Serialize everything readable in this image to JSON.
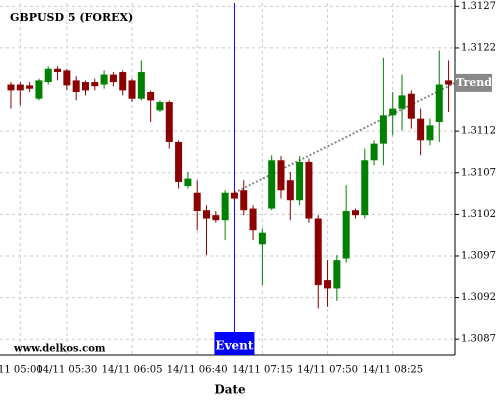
{
  "chart_data": {
    "type": "candlestick",
    "title": "GBPUSD 5 (FOREX)",
    "x_label": "Date",
    "watermark": "www.delkos.com",
    "categories": [
      null,
      "11 05:00",
      null,
      null,
      null,
      null,
      "14/11 05:30",
      null,
      null,
      null,
      null,
      null,
      null,
      "14/11 06:05",
      null,
      null,
      null,
      null,
      null,
      null,
      "14/11 06:40",
      null,
      null,
      null,
      null,
      null,
      null,
      "14/11 07:15",
      null,
      null,
      null,
      null,
      null,
      null,
      "14/11 07:50",
      null,
      null,
      null,
      null,
      null,
      null,
      "14/11 08:25",
      null,
      null,
      null,
      null,
      null,
      null
    ],
    "open": [
      1.31176,
      1.31176,
      1.31175,
      1.31159,
      1.31179,
      1.31195,
      1.31193,
      1.31181,
      1.31179,
      1.31179,
      1.31176,
      1.31188,
      1.31191,
      1.31181,
      1.31159,
      1.31167,
      1.31145,
      1.31155,
      1.31107,
      1.31054,
      1.31046,
      1.31025,
      1.31019,
      1.31013,
      1.31046,
      1.31049,
      1.31027,
      1.30984,
      1.31027,
      1.31085,
      1.31061,
      1.31037,
      1.31083,
      1.31015,
      1.30941,
      1.30931,
      1.30967,
      1.31025,
      1.31019,
      1.31085,
      1.31105,
      1.31139,
      1.31147,
      1.31165,
      1.31135,
      1.31109,
      1.31131,
      1.31181
    ],
    "high": [
      1.31179,
      1.31179,
      1.31179,
      1.31183,
      1.31198,
      1.31198,
      1.31195,
      1.31186,
      1.31181,
      1.31183,
      1.31193,
      1.31191,
      1.31193,
      1.31183,
      1.31205,
      1.31169,
      1.31157,
      1.31157,
      1.31109,
      1.31071,
      1.31061,
      1.31031,
      1.31024,
      1.31049,
      1.31049,
      1.31061,
      1.31031,
      1.31003,
      1.31091,
      1.3109,
      1.31071,
      1.3109,
      1.31087,
      1.31019,
      1.30965,
      1.30971,
      1.31055,
      1.31027,
      1.31099,
      1.31109,
      1.31208,
      1.31167,
      1.31188,
      1.31169,
      1.31147,
      1.31135,
      1.31217,
      1.31205
    ],
    "low": [
      1.31147,
      1.31151,
      1.31167,
      1.31157,
      1.31176,
      1.31181,
      1.31169,
      1.31157,
      1.31163,
      1.31169,
      1.31171,
      1.31174,
      1.31163,
      1.31155,
      1.31157,
      1.31131,
      1.31143,
      1.31099,
      1.31051,
      1.31051,
      1.31001,
      1.30971,
      1.3101,
      1.30989,
      1.31037,
      1.31019,
      1.30989,
      1.30935,
      1.31025,
      1.31039,
      1.31013,
      1.31031,
      1.3101,
      1.30907,
      1.30909,
      1.30916,
      1.30962,
      1.31015,
      1.31015,
      1.31079,
      1.31079,
      1.31115,
      1.31121,
      1.31123,
      1.31091,
      1.31103,
      1.31107,
      1.31143
    ],
    "close": [
      1.31169,
      1.31169,
      1.31171,
      1.31181,
      1.31195,
      1.31191,
      1.31175,
      1.31167,
      1.31169,
      1.31174,
      1.31188,
      1.31179,
      1.31169,
      1.31159,
      1.31191,
      1.31157,
      1.31155,
      1.31107,
      1.31059,
      1.31063,
      1.31024,
      1.31015,
      1.31013,
      1.31046,
      1.31039,
      1.31025,
      1.31001,
      1.30998,
      1.31085,
      1.31049,
      1.31037,
      1.31083,
      1.31015,
      1.30935,
      1.30931,
      1.30965,
      1.31024,
      1.31019,
      1.31085,
      1.31105,
      1.31139,
      1.31147,
      1.31163,
      1.31135,
      1.31109,
      1.31127,
      1.31176,
      1.31176
    ],
    "up_color": "#008000",
    "down_color": "#8b0000",
    "ylim": [
      1.30851,
      1.31274
    ],
    "yticks": [
      1.3087,
      1.3092,
      1.3097,
      1.3102,
      1.3107,
      1.3112,
      1.3122,
      1.3127
    ],
    "grid": true,
    "event": {
      "label": "Event",
      "index": 24,
      "color": "#0000ff"
    },
    "trend": {
      "label": "Trend",
      "from_index": 24,
      "from_value": 1.31046,
      "to_index": 47.7,
      "to_value": 1.31178,
      "color": "#888888"
    }
  }
}
